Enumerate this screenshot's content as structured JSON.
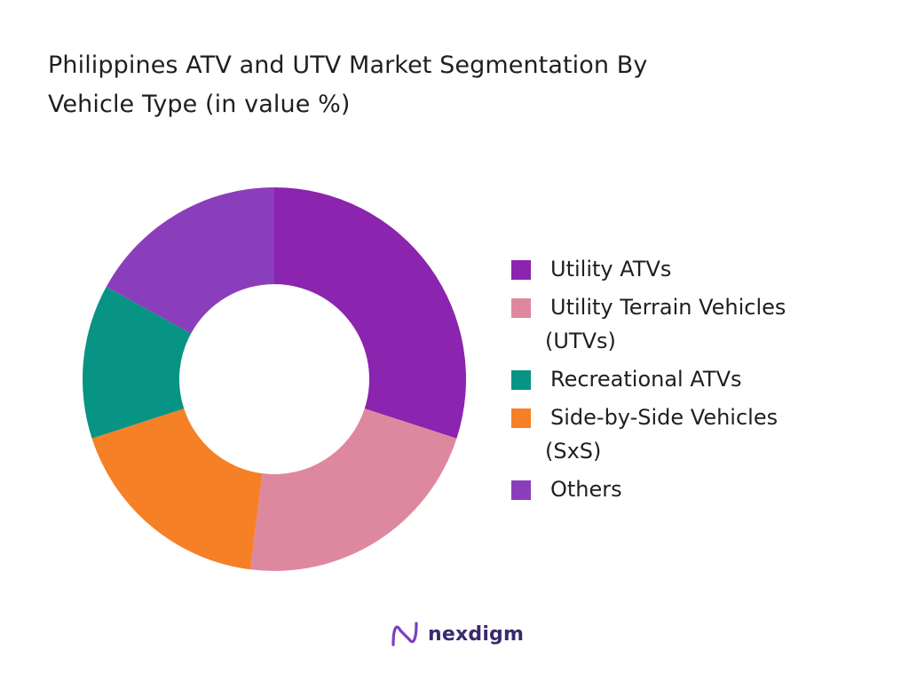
{
  "chart_data": {
    "type": "pie",
    "variant": "donut",
    "title_lines": [
      "Philippines ATV and UTV Market Segmentation By",
      "Vehicle Type (in value %)"
    ],
    "legend_position": "right",
    "slices": [
      {
        "label_lines": [
          "Utility ATVs"
        ],
        "value": 30,
        "color": "#8B24AE"
      },
      {
        "label_lines": [
          "Utility Terrain Vehicles",
          "(UTVs)"
        ],
        "value": 22,
        "color": "#DE88A0"
      },
      {
        "label_lines": [
          "Side-by-Side Vehicles",
          "(SxS)"
        ],
        "value": 18,
        "color": "#F58026"
      },
      {
        "label_lines": [
          "Recreational ATVs"
        ],
        "value": 13,
        "color": "#079485"
      },
      {
        "label_lines": [
          "Others"
        ],
        "value": 17,
        "color": "#8B3EBB"
      }
    ],
    "legend_order": [
      0,
      1,
      3,
      2,
      4
    ]
  },
  "brand": {
    "name": "nexdigm",
    "mark_color": "#7B3FC0"
  }
}
